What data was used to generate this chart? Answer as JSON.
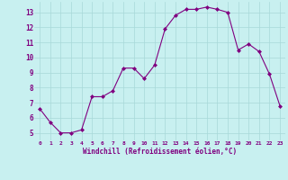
{
  "x": [
    0,
    1,
    2,
    3,
    4,
    5,
    6,
    7,
    8,
    9,
    10,
    11,
    12,
    13,
    14,
    15,
    16,
    17,
    18,
    19,
    20,
    21,
    22,
    23
  ],
  "y": [
    6.6,
    5.7,
    5.0,
    5.0,
    5.2,
    7.4,
    7.4,
    7.8,
    9.3,
    9.3,
    8.6,
    9.5,
    11.9,
    12.8,
    13.2,
    13.2,
    13.35,
    13.2,
    13.0,
    10.5,
    10.9,
    10.4,
    8.9,
    6.8
  ],
  "line_color": "#800080",
  "marker": "D",
  "marker_size": 2.0,
  "bg_color": "#c8f0f0",
  "grid_color": "#a8d8d8",
  "xlabel": "Windchill (Refroidissement éolien,°C)",
  "xlabel_color": "#800080",
  "tick_color": "#800080",
  "ylim": [
    4.5,
    13.7
  ],
  "xlim": [
    -0.5,
    23.5
  ],
  "yticks": [
    5,
    6,
    7,
    8,
    9,
    10,
    11,
    12,
    13
  ],
  "xticks": [
    0,
    1,
    2,
    3,
    4,
    5,
    6,
    7,
    8,
    9,
    10,
    11,
    12,
    13,
    14,
    15,
    16,
    17,
    18,
    19,
    20,
    21,
    22,
    23
  ]
}
